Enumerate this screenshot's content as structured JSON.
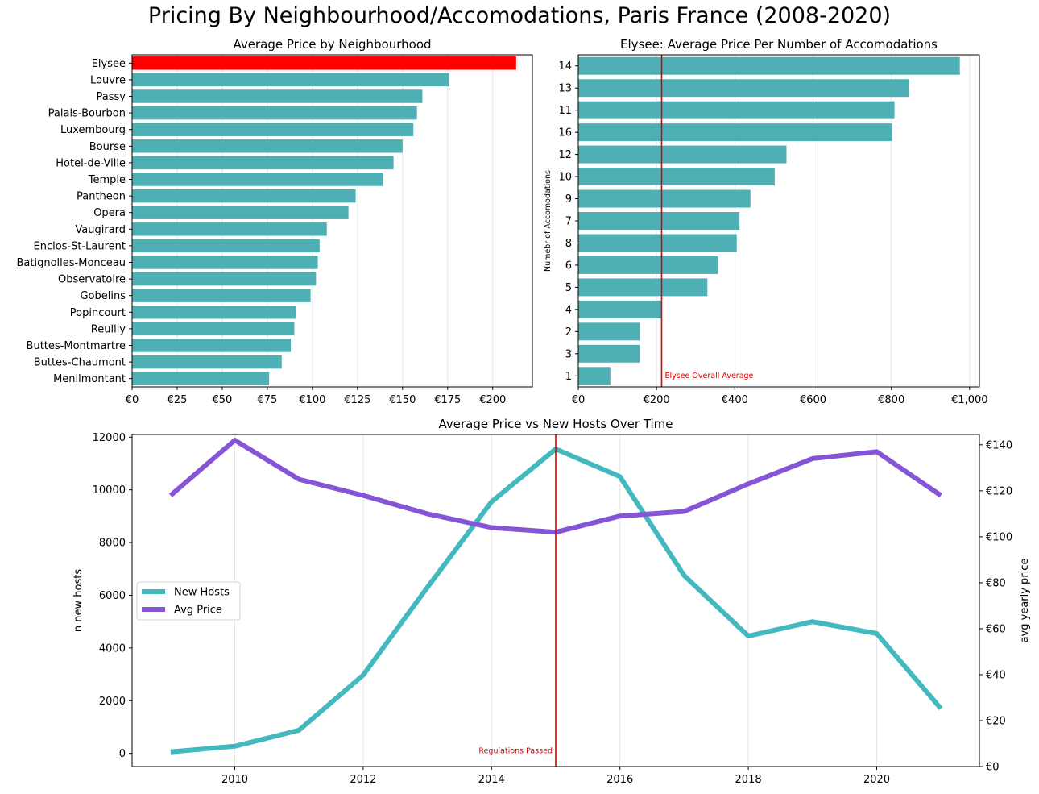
{
  "suptitle": "Pricing By Neighbourhood/Accomodations, Paris France (2008-2020)",
  "colors": {
    "teal": "#4eb0b4",
    "highlight": "#ff0000",
    "line_teal": "#42b8bf",
    "purple": "#8655d6",
    "ref_line": "#e00000"
  },
  "chart_data": [
    {
      "type": "bar",
      "orientation": "horizontal",
      "title": "Average Price by Neighbourhood",
      "xlabel": "",
      "ylabel": "",
      "xlim": [
        0,
        222
      ],
      "x_ticks": [
        0,
        25,
        50,
        75,
        100,
        125,
        150,
        175,
        200
      ],
      "x_tick_labels": [
        "€0",
        "€25",
        "€50",
        "€75",
        "€100",
        "€125",
        "€150",
        "€175",
        "€200"
      ],
      "grid": "vertical",
      "highlight_category": "Elysee",
      "categories": [
        "Elysee",
        "Louvre",
        "Passy",
        "Palais-Bourbon",
        "Luxembourg",
        "Bourse",
        "Hotel-de-Ville",
        "Temple",
        "Pantheon",
        "Opera",
        "Vaugirard",
        "Enclos-St-Laurent",
        "Batignolles-Monceau",
        "Observatoire",
        "Gobelins",
        "Popincourt",
        "Reuilly",
        "Buttes-Montmartre",
        "Buttes-Chaumont",
        "Menilmontant"
      ],
      "values": [
        213,
        176,
        161,
        158,
        156,
        150,
        145,
        139,
        124,
        120,
        108,
        104,
        103,
        102,
        99,
        91,
        90,
        88,
        83,
        76
      ]
    },
    {
      "type": "bar",
      "orientation": "horizontal",
      "title": "Elysee: Average Price Per Number of Accomodations",
      "xlabel": "",
      "ylabel": "Numebr of Accomodations",
      "xlim": [
        0,
        1025
      ],
      "x_ticks": [
        0,
        200,
        400,
        600,
        800,
        1000
      ],
      "x_tick_labels": [
        "€0",
        "€200",
        "€400",
        "€600",
        "€800",
        "€1,000"
      ],
      "grid": "vertical",
      "categories": [
        "14",
        "13",
        "11",
        "16",
        "12",
        "10",
        "9",
        "7",
        "8",
        "6",
        "5",
        "4",
        "2",
        "3",
        "1"
      ],
      "values": [
        975,
        845,
        808,
        802,
        532,
        502,
        440,
        412,
        405,
        357,
        330,
        212,
        157,
        157,
        82
      ],
      "reference_line": {
        "x": 213,
        "label": "Elysee Overall Average"
      }
    },
    {
      "type": "line",
      "title": "Average Price vs New Hosts Over Time",
      "xlabel": "",
      "ylabel": "n new hosts",
      "ylabel_right": "avg yearly price",
      "x": [
        2009,
        2010,
        2011,
        2012,
        2013,
        2014,
        2015,
        2016,
        2017,
        2018,
        2019,
        2020,
        2021
      ],
      "xlim": [
        2008.4,
        2021.6
      ],
      "x_ticks": [
        2010,
        2012,
        2014,
        2016,
        2018,
        2020
      ],
      "ylim": [
        -500,
        12100
      ],
      "y_ticks": [
        0,
        2000,
        4000,
        6000,
        8000,
        10000,
        12000
      ],
      "ylim_right": [
        0,
        144.5
      ],
      "y_ticks_right": [
        0,
        20,
        40,
        60,
        80,
        100,
        120,
        140
      ],
      "y_tick_labels_right": [
        "€0",
        "€20",
        "€40",
        "€60",
        "€80",
        "€100",
        "€120",
        "€140"
      ],
      "grid": "vertical",
      "legend_position": "center-left",
      "series": [
        {
          "name": "New Hosts",
          "axis": "left",
          "values": [
            60,
            270,
            880,
            2970,
            6300,
            9550,
            11550,
            10500,
            6750,
            4450,
            5000,
            4550,
            1700
          ]
        },
        {
          "name": "Avg Price",
          "axis": "right",
          "values": [
            118,
            142,
            125,
            118,
            110,
            104,
            102,
            109,
            111,
            123,
            134,
            137,
            118
          ]
        }
      ],
      "reference_line": {
        "x": 2015,
        "label": "Regulations Passed"
      }
    }
  ]
}
